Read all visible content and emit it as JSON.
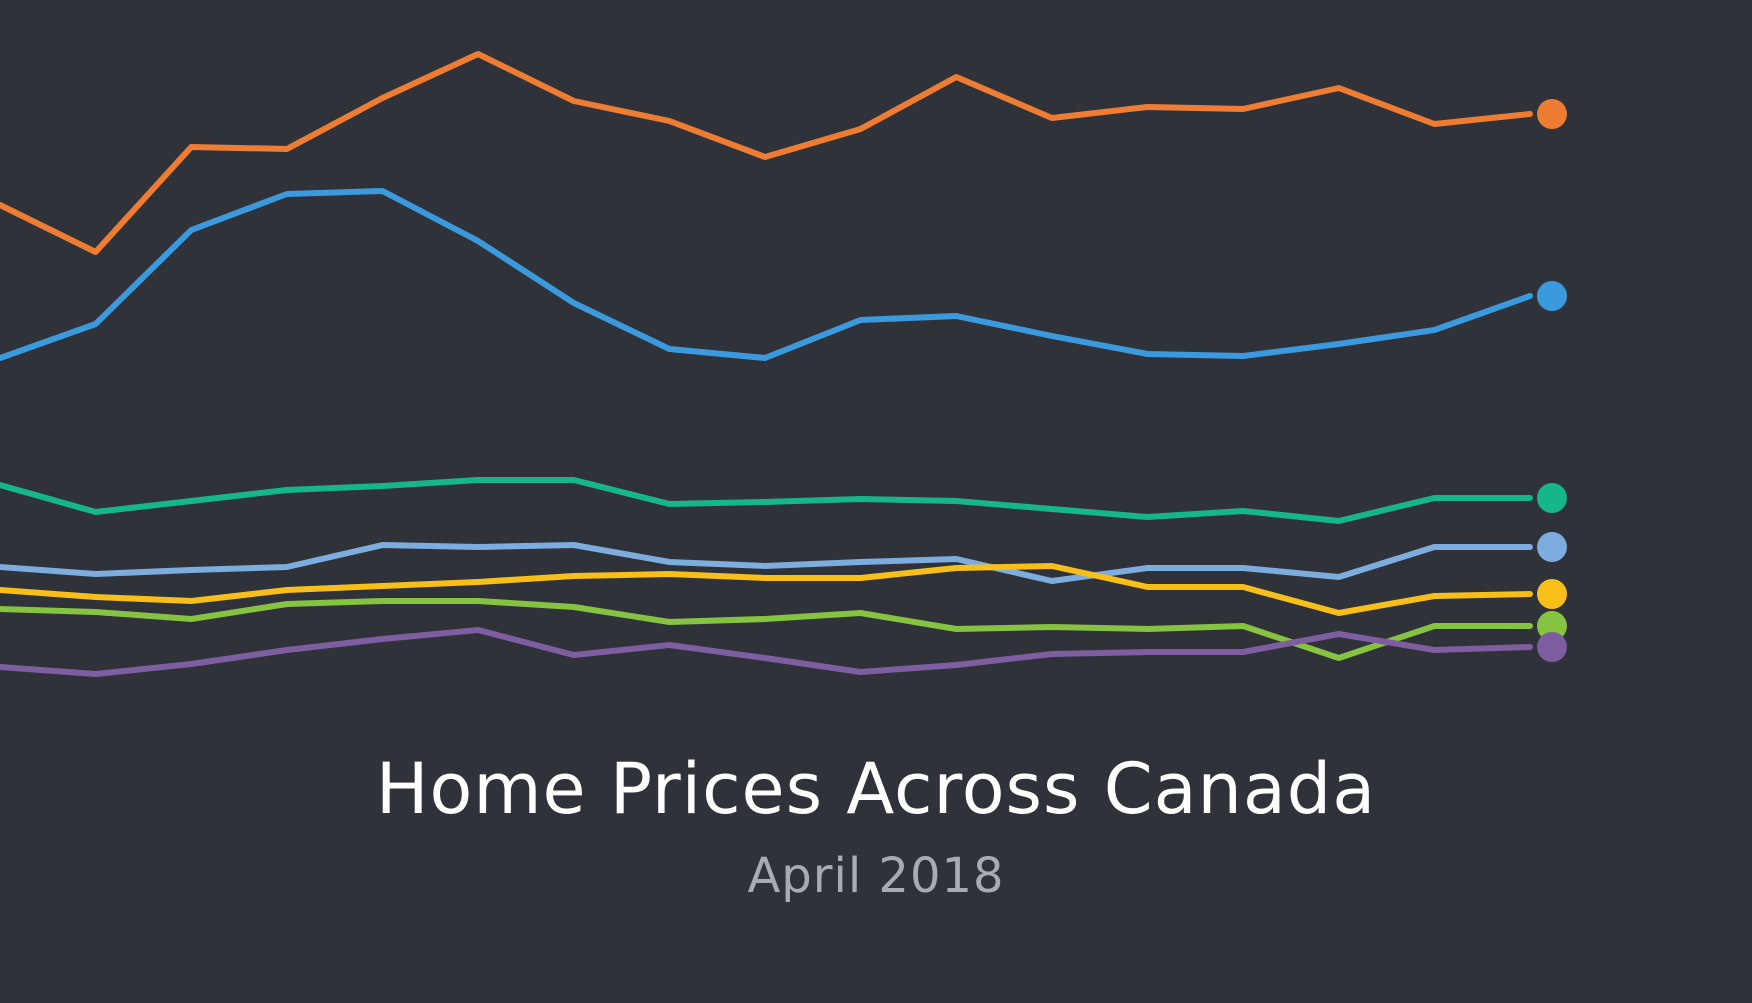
{
  "chart_data": {
    "type": "line",
    "title": "Home Prices Across Canada",
    "subtitle": "April 2018",
    "xlabel": "",
    "ylabel": "",
    "grid": false,
    "legend": "none",
    "axes_visible": false,
    "x": [
      0,
      1,
      2,
      3,
      4,
      5,
      6,
      7,
      8,
      9,
      10,
      11,
      12,
      13,
      14,
      15,
      16
    ],
    "ylim": [
      0,
      100
    ],
    "series": [
      {
        "color": "#ee7d33",
        "values": [
          79.5,
          74.8,
          85.3,
          85.1,
          90.2,
          94.6,
          89.9,
          87.9,
          84.3,
          87.1,
          92.3,
          88.2,
          89.3,
          89.1,
          91.2,
          87.6,
          88.6
        ]
      },
      {
        "color": "#3b9ade",
        "values": [
          64.2,
          67.6,
          77.0,
          80.6,
          80.9,
          75.9,
          69.7,
          65.1,
          64.2,
          68.0,
          68.4,
          66.4,
          64.6,
          64.4,
          65.6,
          67.0,
          70.4
        ]
      },
      {
        "color": "#16b68b",
        "values": [
          51.5,
          48.8,
          49.9,
          51.0,
          51.4,
          52.0,
          52.0,
          49.6,
          49.8,
          50.1,
          49.9,
          49.1,
          48.3,
          48.9,
          47.9,
          50.2,
          50.2
        ]
      },
      {
        "color": "#7cadde",
        "values": [
          43.3,
          42.6,
          43.0,
          43.3,
          45.5,
          45.3,
          45.5,
          43.8,
          43.4,
          43.8,
          44.1,
          41.9,
          43.2,
          43.2,
          42.3,
          45.3,
          45.3
        ]
      },
      {
        "color": "#f8bf1a",
        "values": [
          41.0,
          40.3,
          39.9,
          41.0,
          41.4,
          41.8,
          42.4,
          42.6,
          42.2,
          42.2,
          43.2,
          43.4,
          41.3,
          41.3,
          38.7,
          40.4,
          40.6
        ]
      },
      {
        "color": "#86c341",
        "values": [
          39.1,
          38.8,
          38.1,
          39.6,
          39.9,
          39.9,
          39.3,
          37.8,
          38.1,
          38.7,
          37.1,
          37.3,
          37.1,
          37.4,
          34.2,
          37.4,
          37.4
        ]
      },
      {
        "color": "#7e5ea0",
        "values": [
          33.3,
          32.6,
          33.6,
          35.0,
          36.1,
          37.0,
          34.5,
          35.5,
          34.2,
          32.8,
          33.5,
          34.6,
          34.8,
          34.8,
          36.6,
          35.0,
          35.3
        ]
      }
    ]
  }
}
